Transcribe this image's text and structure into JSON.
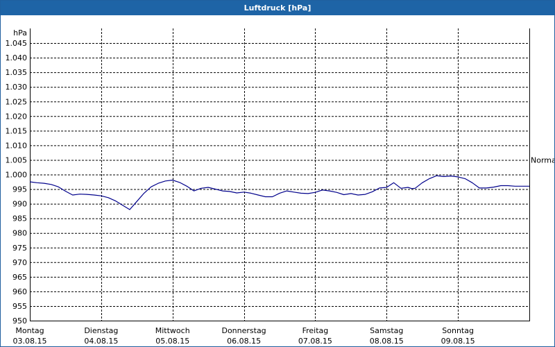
{
  "window": {
    "title": "Luftdruck [hPa]"
  },
  "chart_data": {
    "type": "line",
    "title": "Luftdruck [hPa]",
    "ylabel": "hPa",
    "ylim": [
      950,
      1050
    ],
    "yticks": [
      950,
      955,
      960,
      965,
      970,
      975,
      980,
      985,
      990,
      995,
      1000,
      1005,
      1010,
      1015,
      1020,
      1025,
      1030,
      1035,
      1040,
      1045
    ],
    "ytick_labels": [
      "950",
      "955",
      "960",
      "965",
      "970",
      "975",
      "980",
      "985",
      "990",
      "995",
      "1.000",
      "1.005",
      "1.010",
      "1.015",
      "1.020",
      "1.025",
      "1.030",
      "1.035",
      "1.040",
      "1.045"
    ],
    "xlim": [
      0,
      7
    ],
    "x_ticks": [
      {
        "day": "Montag",
        "date": "03.08.15"
      },
      {
        "day": "Dienstag",
        "date": "04.08.15"
      },
      {
        "day": "Mittwoch",
        "date": "05.08.15"
      },
      {
        "day": "Donnerstag",
        "date": "06.08.15"
      },
      {
        "day": "Freitag",
        "date": "07.08.15"
      },
      {
        "day": "Samstag",
        "date": "08.08.15"
      },
      {
        "day": "Sonntag",
        "date": "09.08.15"
      }
    ],
    "reference_line": {
      "label": "Normal",
      "value": 1005
    },
    "grid": true,
    "series": [
      {
        "color": "#00008b",
        "x": [
          0,
          0.1,
          0.2,
          0.3,
          0.4,
          0.5,
          0.6,
          0.7,
          0.8,
          0.9,
          1.0,
          1.1,
          1.2,
          1.3,
          1.4,
          1.5,
          1.6,
          1.7,
          1.8,
          1.9,
          2.0,
          2.1,
          2.2,
          2.3,
          2.4,
          2.5,
          2.6,
          2.7,
          2.8,
          2.9,
          3.0,
          3.1,
          3.2,
          3.3,
          3.4,
          3.5,
          3.6,
          3.7,
          3.8,
          3.9,
          4.0,
          4.1,
          4.2,
          4.3,
          4.4,
          4.5,
          4.6,
          4.7,
          4.8,
          4.9,
          5.0,
          5.1,
          5.2,
          5.3,
          5.35,
          5.4,
          5.5,
          5.6,
          5.7,
          5.8,
          5.9,
          6.0,
          6.1,
          6.2,
          6.3,
          6.4,
          6.5,
          6.6,
          6.7,
          6.8,
          6.9,
          7.0
        ],
        "y": [
          997.5,
          997.2,
          997.0,
          996.6,
          995.8,
          994.3,
          993.0,
          993.3,
          993.2,
          993.0,
          992.7,
          992.1,
          991.0,
          989.5,
          988.0,
          990.8,
          993.6,
          995.8,
          997.0,
          997.8,
          998.1,
          997.3,
          996.0,
          994.4,
          995.3,
          995.6,
          995.0,
          994.4,
          994.2,
          993.7,
          994.0,
          993.6,
          993.0,
          992.4,
          992.4,
          993.6,
          994.4,
          994.0,
          993.6,
          993.5,
          993.9,
          994.7,
          994.4,
          993.9,
          993.1,
          993.5,
          993.0,
          993.2,
          994.1,
          995.4,
          995.6,
          997.2,
          995.3,
          995.6,
          995.2,
          995.3,
          997.2,
          998.6,
          999.6,
          999.3,
          999.5,
          999.2,
          998.6,
          997.2,
          995.4,
          995.4,
          995.7,
          996.2,
          996.2,
          996.0,
          996.0,
          996.0
        ]
      }
    ]
  }
}
